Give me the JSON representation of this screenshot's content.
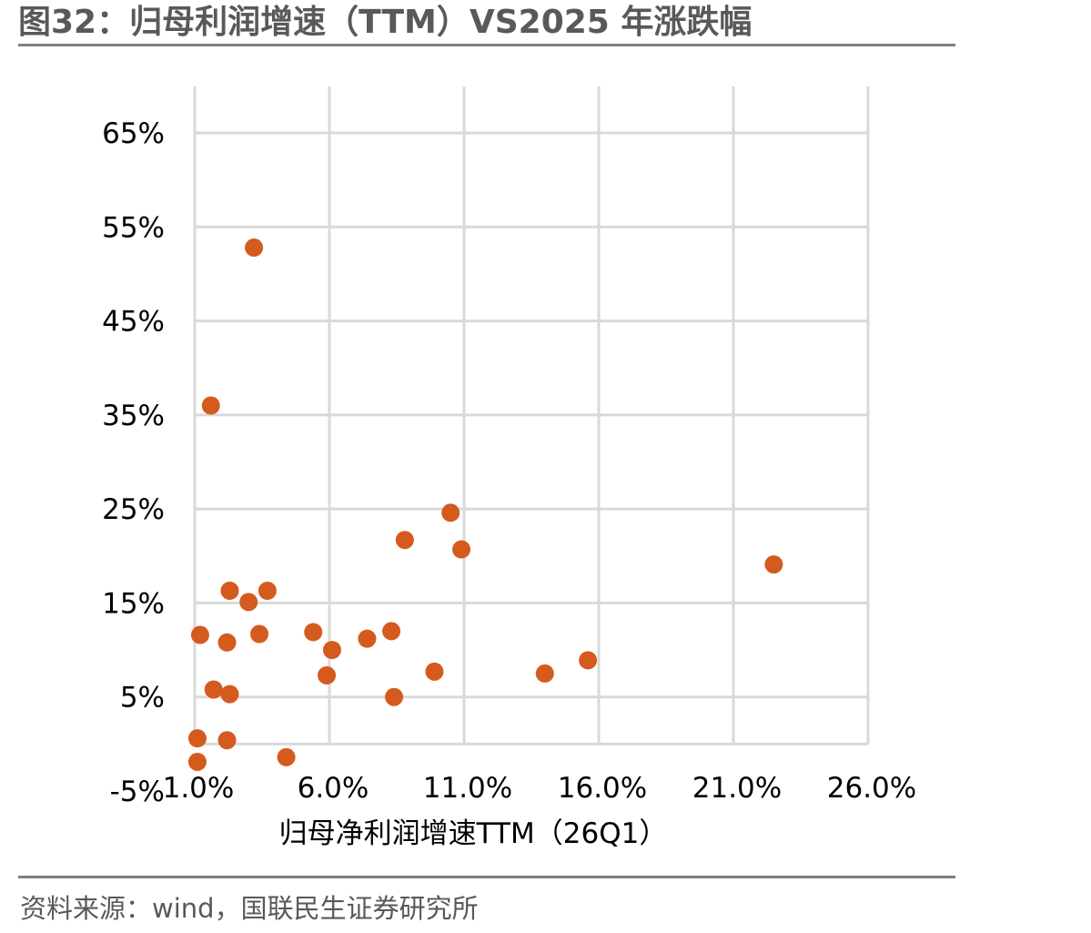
{
  "header": {
    "title": "图32：归母利润增速（TTM）VS2025 年涨跌幅"
  },
  "footer": {
    "source": "资料来源：wind，国联民生证券研究所"
  },
  "chart_data": {
    "type": "scatter",
    "title": "",
    "xlabel": "归母净利润增速TTM（26Q1）",
    "ylabel": "",
    "xlim": [
      1.0,
      26.0
    ],
    "ylim": [
      -5,
      65
    ],
    "x_ticks": [
      1.0,
      6.0,
      11.0,
      16.0,
      21.0,
      26.0
    ],
    "x_tick_labels": [
      "1.0%",
      "6.0%",
      "11.0%",
      "16.0%",
      "21.0%",
      "26.0%"
    ],
    "y_ticks": [
      -5,
      5,
      15,
      25,
      35,
      45,
      55,
      65
    ],
    "y_tick_labels": [
      "-5%",
      "5%",
      "15%",
      "25%",
      "35%",
      "45%",
      "55%",
      "65%"
    ],
    "grid": true,
    "marker_color": "#D55A1E",
    "grid_color": "#D9D9D9",
    "points": [
      {
        "x": 3.2,
        "y": 52.8
      },
      {
        "x": 1.6,
        "y": 36.0
      },
      {
        "x": 10.5,
        "y": 24.6
      },
      {
        "x": 8.8,
        "y": 21.7
      },
      {
        "x": 10.9,
        "y": 20.7
      },
      {
        "x": 22.5,
        "y": 19.1
      },
      {
        "x": 2.3,
        "y": 16.3
      },
      {
        "x": 3.7,
        "y": 16.3
      },
      {
        "x": 3.0,
        "y": 15.1
      },
      {
        "x": 1.2,
        "y": 11.6
      },
      {
        "x": 3.4,
        "y": 11.7
      },
      {
        "x": 5.4,
        "y": 11.9
      },
      {
        "x": 8.3,
        "y": 12.0
      },
      {
        "x": 7.4,
        "y": 11.2
      },
      {
        "x": 2.2,
        "y": 10.8
      },
      {
        "x": 6.1,
        "y": 10.0
      },
      {
        "x": 15.6,
        "y": 8.9
      },
      {
        "x": 9.9,
        "y": 7.7
      },
      {
        "x": 14.0,
        "y": 7.5
      },
      {
        "x": 5.9,
        "y": 7.3
      },
      {
        "x": 1.7,
        "y": 5.8
      },
      {
        "x": 2.3,
        "y": 5.3
      },
      {
        "x": 8.4,
        "y": 5.0
      },
      {
        "x": 1.1,
        "y": 0.6
      },
      {
        "x": 2.2,
        "y": 0.4
      },
      {
        "x": 4.4,
        "y": -1.4
      },
      {
        "x": 1.1,
        "y": -1.9
      }
    ]
  }
}
